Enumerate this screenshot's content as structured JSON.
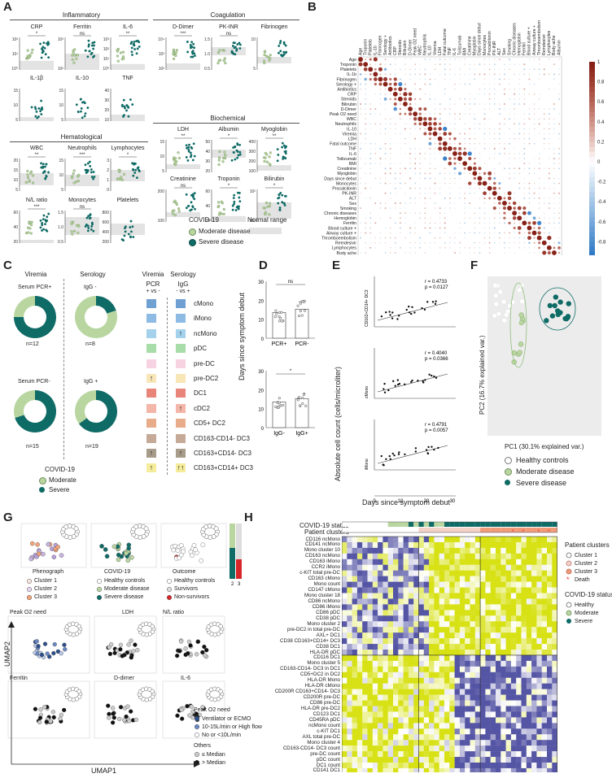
{
  "panel_labels": [
    "A",
    "B",
    "C",
    "D",
    "E",
    "F",
    "G",
    "H"
  ],
  "panelA": {
    "group_titles": [
      "Inflammatory",
      "Coagulation",
      "Biochemical",
      "Hematological"
    ],
    "plots": [
      {
        "title": "CRP",
        "sig": "*",
        "ylabels": [
          "10²",
          "10¹",
          "10⁰"
        ],
        "shade": [
          0.72,
          1.0
        ]
      },
      {
        "title": "Ferritin",
        "sig": "ns",
        "ylabels": [
          "10³",
          "10²"
        ],
        "shade": [
          0.5,
          1.0
        ]
      },
      {
        "title": "IL-6",
        "sig": "**",
        "ylabels": [
          "10³",
          "10²",
          "10¹",
          "10⁰"
        ],
        "shade": [
          0.82,
          1.0
        ]
      },
      {
        "title": "IL-1β",
        "sig": "",
        "ylabels": [
          "15",
          "10",
          "5"
        ],
        "shade": [
          0.88,
          1.0
        ]
      },
      {
        "title": "IL-10",
        "sig": "",
        "ylabels": [
          "15",
          "10",
          "5"
        ],
        "shade": [
          0.9,
          1.0
        ]
      },
      {
        "title": "TNF",
        "sig": "",
        "ylabels": [
          "40",
          "30",
          "20",
          "10"
        ],
        "shade": [
          0.8,
          1.0
        ]
      },
      {
        "title": "WBC",
        "sig": "**",
        "ylabels": [
          "20",
          "15",
          "10",
          "5"
        ],
        "shade": [
          0.45,
          0.82
        ]
      },
      {
        "title": "Neutrophils",
        "sig": "***",
        "ylabels": [
          "15",
          "10",
          "5"
        ],
        "shade": [
          0.5,
          0.85
        ]
      },
      {
        "title": "Lymphocytes",
        "sig": "*",
        "ylabels": [
          "3",
          "2",
          "1",
          "0"
        ],
        "shade": [
          0.35,
          0.7
        ]
      },
      {
        "title": "N/L ratio",
        "sig": "***",
        "ylabels": [
          "60",
          "40",
          "20"
        ],
        "shade": [
          0.9,
          1.0
        ]
      },
      {
        "title": "Monocytes",
        "sig": "ns",
        "ylabels": [
          "1.5",
          "1.0",
          "0.5"
        ],
        "shade": [
          0.2,
          0.75
        ]
      },
      {
        "title": "Platelets",
        "sig": "",
        "ylabels": [
          "800",
          "600",
          "400",
          "200"
        ],
        "shade": [
          0.4,
          0.75
        ]
      },
      {
        "title": "D-Dimer",
        "sig": "***",
        "ylabels": [
          "10⁴",
          "10³",
          "10²"
        ],
        "shade": [
          0.8,
          1.0
        ]
      },
      {
        "title": "PK-INR",
        "sig": "ns",
        "ylabels": [
          "1.5",
          "1.0",
          "0.5"
        ],
        "shade": [
          0.3,
          0.55
        ]
      },
      {
        "title": "Fibrinogen",
        "sig": "",
        "ylabels": [
          "10",
          "5"
        ],
        "shade": [
          0.6,
          0.8
        ]
      },
      {
        "title": "LDH",
        "sig": "**",
        "ylabels": [
          "15",
          "10",
          "5"
        ],
        "shade": [
          0.75,
          0.9
        ]
      },
      {
        "title": "Albumin",
        "sig": "*",
        "ylabels": [
          "50",
          "40",
          "30",
          "20"
        ],
        "shade": [
          0.3,
          0.55
        ]
      },
      {
        "title": "Myoglobin",
        "sig": "**",
        "ylabels": [
          "400",
          "300",
          "200",
          "100"
        ],
        "shade": [
          0.78,
          0.95
        ]
      },
      {
        "title": "Creatinine",
        "sig": "ns",
        "ylabels": [
          "200",
          "100"
        ],
        "shade": [
          0.7,
          0.85
        ]
      },
      {
        "title": "Troponin",
        "sig": "*",
        "ylabels": [
          "60",
          "40",
          "20"
        ],
        "shade": [
          0.82,
          1.0
        ]
      },
      {
        "title": "Bilirubin",
        "sig": "*",
        "ylabels": [
          "10²",
          "10¹"
        ],
        "shade": [
          0.4,
          0.9
        ]
      }
    ],
    "legend": {
      "title": "COVID-19",
      "normal": "Normal range",
      "moderate": "Moderate disease",
      "severe": "Severe disease"
    }
  },
  "panelB": {
    "variables": [
      "Age",
      "Troponin",
      "Platelets",
      "IL-1b",
      "Fibrinogen",
      "Serology +",
      "Antibiotics",
      "CRP",
      "Steroids",
      "Bilirubin",
      "D-Dimer",
      "Peak O2 need",
      "WBC",
      "Neutrophils",
      "IL-10",
      "Viremia",
      "LDH",
      "Fatal outcome",
      "TNF",
      "IL-6",
      "Toilizumab",
      "BMI",
      "Creatinine",
      "Myoglobin",
      "Days since debut",
      "Monocytes",
      "Procalcitonin",
      "PK-INR",
      "ALT",
      "Sex",
      "Smoking",
      "Chronic diseases",
      "Hemoglobin",
      "Ferritin",
      "Blood culture +",
      "Airway culture +",
      "Thromboembolism",
      "Remdesivir",
      "Lymphocytes",
      "Body ache",
      "Albumin"
    ],
    "scale": [
      "1",
      "0.8",
      "0.6",
      "0.4",
      "0.2",
      "0",
      "-0.2",
      "-0.4",
      "-0.6",
      "-0.8",
      "-1"
    ]
  },
  "panelC": {
    "col1": "Viremia",
    "col2": "Serology",
    "donuts": [
      {
        "label": "Serum PCR+",
        "n": "n=12",
        "severe": 0.75
      },
      {
        "label": "IgG -",
        "n": "n=8",
        "severe": 0.2
      },
      {
        "label": "Serum PCR-",
        "n": "n=15",
        "severe": 0.7
      },
      {
        "label": "IgG +",
        "n": "n=19",
        "severe": 0.65
      }
    ],
    "legend_title": "COVID-19",
    "moderate": "Moderate",
    "severe": "Severe",
    "hm_head1": "Viremia",
    "hm_head2": "Serology",
    "hm_sub1": "PCR",
    "hm_sub2": "IgG",
    "hm_vs1": "+ vs -",
    "hm_vs2": "- vs +",
    "rows": [
      {
        "label": "cMono",
        "c1": "#6ea0d2",
        "c2": "#6ea0d2",
        "a1": "",
        "a2": ""
      },
      {
        "label": "iMono",
        "c1": "#8dbbe3",
        "c2": "#8dbbe3",
        "a1": "",
        "a2": ""
      },
      {
        "label": "ncMono",
        "c1": "#a4d2ec",
        "c2": "#a4d2ec",
        "a1": "",
        "a2": "↑"
      },
      {
        "label": "pDC",
        "c1": "#a8dca8",
        "c2": "#a8dca8",
        "a1": "",
        "a2": ""
      },
      {
        "label": "pre-DC",
        "c1": "#f7d3e2",
        "c2": "#f7d3e2",
        "a1": "",
        "a2": ""
      },
      {
        "label": "pre-DC2",
        "c1": "#f8e6b6",
        "c2": "#f8e6b6",
        "a1": "↑",
        "a2": ""
      },
      {
        "label": "DC1",
        "c1": "#e8847a",
        "c2": "#e8847a",
        "a1": "",
        "a2": ""
      },
      {
        "label": "cDC2",
        "c1": "#f3b6a8",
        "c2": "#f3b6a8",
        "a1": "",
        "a2": "↑"
      },
      {
        "label": "CD5+ DC2",
        "c1": "#e9ac8a",
        "c2": "#e9ac8a",
        "a1": "",
        "a2": ""
      },
      {
        "label": "CD163-CD14- DC3",
        "c1": "#c6aa98",
        "c2": "#c6aa98",
        "a1": "",
        "a2": ""
      },
      {
        "label": "CD163+CD14- DC3",
        "c1": "#a99b8a",
        "c2": "#a99b8a",
        "a1": "↑",
        "a2": "↑"
      },
      {
        "label": "CD163+CD14+ DC3",
        "c1": "#f5ed9c",
        "c2": "#f5ed9c",
        "a1": "↑",
        "a2": "↑↑"
      }
    ]
  },
  "panelD": {
    "ylabel": "Days since symptom debut",
    "sig1": "ns",
    "sig2": "*",
    "x1": [
      "PCR+",
      "PCR-"
    ],
    "x2": [
      "IgG-",
      "IgG+"
    ],
    "yt1": [
      "30",
      "20",
      "10",
      "0"
    ],
    "yt2": [
      "30",
      "20",
      "10",
      "0"
    ]
  },
  "panelE": {
    "ylabel": "Absolute cell count (cells/microliter)",
    "xlabel": "Days since symptom debut",
    "xticks": [
      "0",
      "10",
      "20",
      "30"
    ],
    "plots": [
      {
        "name": "CD163+CD14+ DC3",
        "r": "r = 0.4733",
        "p": "p = 0.0127"
      },
      {
        "name": "cMono",
        "r": "r = 0.4040",
        "p": "p = 0.0366"
      },
      {
        "name": "iMono",
        "r": "r = 0.4791",
        "p": "p = 0.0057"
      }
    ]
  },
  "panelF": {
    "xlabel": "PC1 (30.1% explained var.)",
    "ylabel": "PC2 (16.7% explained var.)",
    "legend": [
      "Healthy controls",
      "Moderate disease",
      "Severe disease"
    ]
  },
  "panelG": {
    "axis_y": "UMAP2",
    "axis_x": "UMAP1",
    "top_titles": [
      "Phenograph",
      "COVID-19",
      "Outcome"
    ],
    "pheno_legend": [
      "Cluster 1",
      "Cluster 2",
      "Cluster 3"
    ],
    "covid_legend": [
      "Healthy controls",
      "Moderate disease",
      "Severe disease"
    ],
    "outcome_legend": [
      "Healthy controls",
      "Survivors",
      "Non-survivors"
    ],
    "bar_labels": [
      "2",
      "3"
    ],
    "small_titles": [
      "Peak O2 need",
      "LDH",
      "N/L ratio",
      "Ferritin",
      "D-dimer",
      "IL-6"
    ],
    "o2_title": "Peak O2 need",
    "o2_legend": [
      "Ventilator or ECMO",
      "10-15L/min or High flow",
      "No or <10L/min"
    ],
    "others_title": "Others",
    "others_legend": [
      "≤ Median",
      "> Median"
    ]
  },
  "panelH": {
    "status_label": "COVID-19 status",
    "clusters_label": "Patient clusters",
    "rows": [
      "CD116 ncMono",
      "CD141 ncMono",
      "Mono cluster 10",
      "CD163 ncMono",
      "CD163 iMono",
      "CCR2 iMono",
      "c-KIT total pre-DC",
      "CD163 cMono",
      "Mono count",
      "CD147 cMono",
      "Mono cluster 18",
      "CD86 ncMono",
      "CD86 iMono",
      "CD86 pDC",
      "CD38 pDC",
      "Mono cluster 2",
      "pre-DC2 in total pre-DC",
      "AXL+ DC1",
      "CD38 CD163+CD14+ DC3",
      "CD38 DC1",
      "HLA-DR pDC",
      "CD116 DC1",
      "Mono cluster 5",
      "CD163-CD14- DC3 in DC1",
      "CD5+DC2 in DC2",
      "HLA-DR Mono",
      "HLA-DR cMono",
      "CD200R CD163+CD14- DC3",
      "CD200R pre-DC",
      "CD86 pre-DC",
      "HLA-DR pre-DC2",
      "CD123 DC1",
      "CD45RA pDC",
      "ncMono count",
      "c-KIT DC1",
      "AXL total pre-DC",
      "Mono cluster 4",
      "CD163-CD14- DC3 count",
      "pre-DC count",
      "pDC count",
      "DC1 count",
      "CD141 DC1"
    ],
    "legend_clusters_title": "Patient clusters",
    "legend_clusters": [
      "Cluster 1",
      "Cluster 2",
      "Cluster 3",
      "Death"
    ],
    "legend_status_title": "COVID-19 status",
    "legend_status": [
      "Healthy",
      "Moderate",
      "Severe"
    ]
  }
}
